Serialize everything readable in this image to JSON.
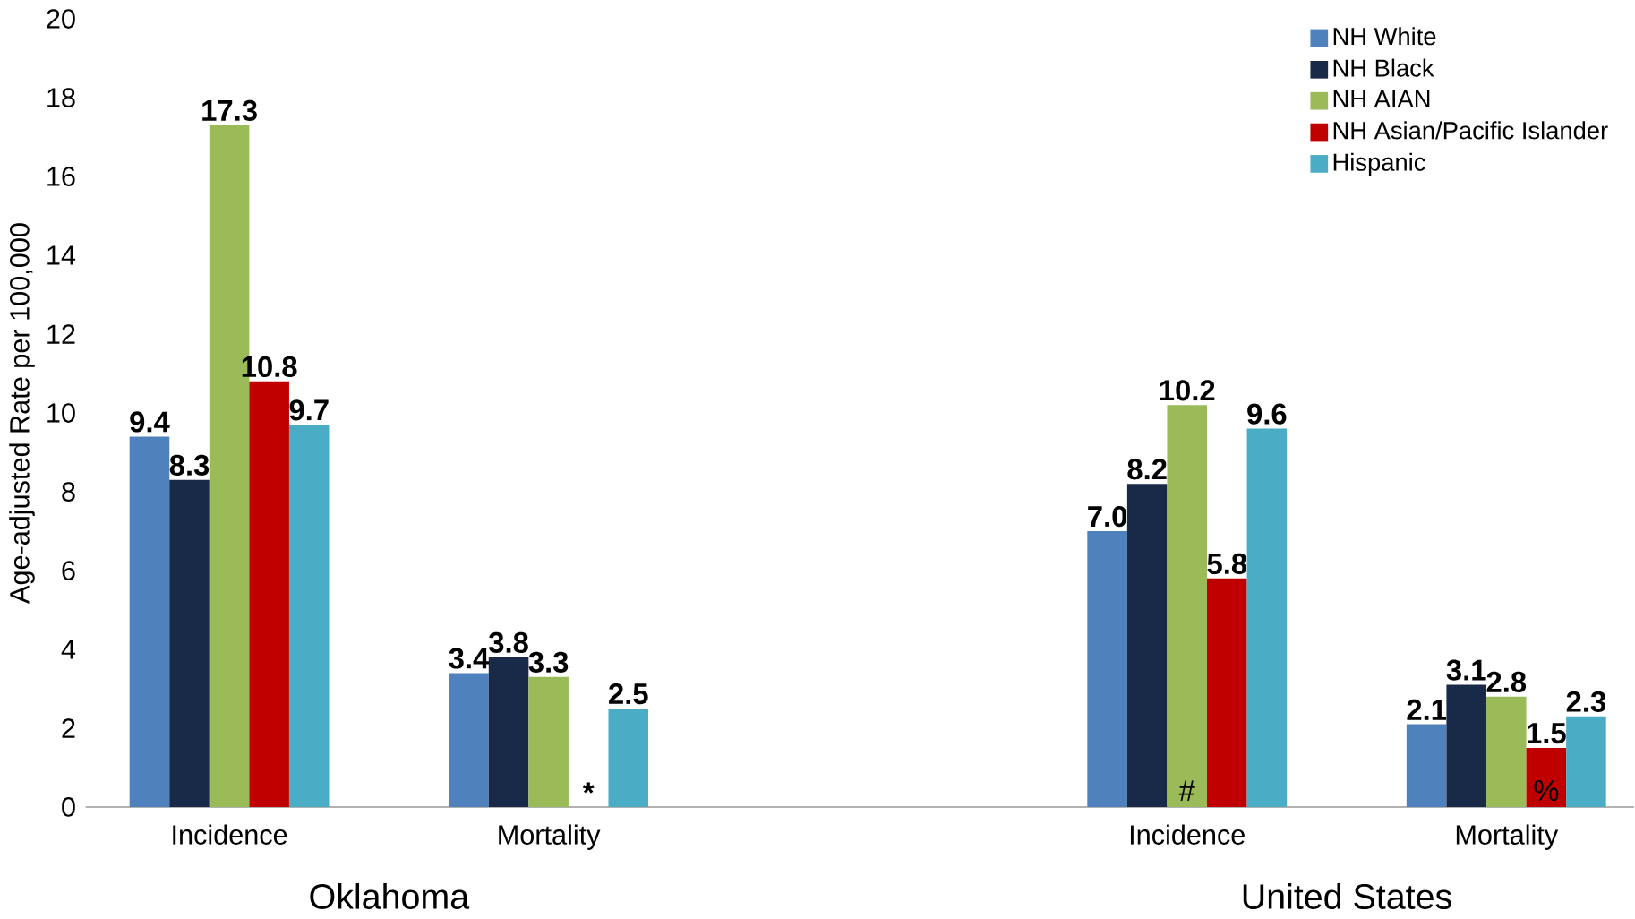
{
  "chart_data": {
    "type": "bar",
    "ylabel": "Age-adjusted Rate per 100,000",
    "categories": [
      "Incidence",
      "Mortality",
      null,
      "Incidence",
      "Mortality"
    ],
    "series": [
      {
        "name": "NH White",
        "color": "#4f81bd",
        "values": [
          9.4,
          3.4,
          null,
          7.0,
          2.1
        ],
        "value_labels": [
          "9.4",
          "3.4",
          null,
          "7.0",
          "2.1"
        ]
      },
      {
        "name": "NH Black",
        "color": "#182a48",
        "values": [
          8.3,
          3.8,
          null,
          8.2,
          3.1
        ],
        "value_labels": [
          "8.3",
          "3.8",
          null,
          "8.2",
          "3.1"
        ]
      },
      {
        "name": "NH AIAN",
        "color": "#9bbb59",
        "values": [
          17.3,
          3.3,
          null,
          10.2,
          2.8
        ],
        "value_labels": [
          "17.3",
          "3.3",
          null,
          "10.2",
          "2.8"
        ]
      },
      {
        "name": "NH Asian/Pacific Islander",
        "color": "#c00000",
        "values": [
          10.8,
          null,
          null,
          5.8,
          1.5
        ],
        "value_labels": [
          "10.8",
          "*",
          null,
          "5.8",
          "1.5"
        ]
      },
      {
        "name": "Hispanic",
        "color": "#4bacc6",
        "values": [
          9.7,
          2.5,
          null,
          9.6,
          2.3
        ],
        "value_labels": [
          "9.7",
          "2.5",
          null,
          "9.6",
          "2.3"
        ]
      }
    ],
    "annotations": [
      "Oklahoma",
      "United States",
      "#",
      "%"
    ],
    "ylim": [
      0,
      20
    ],
    "yticks": [
      0,
      2,
      4,
      6,
      8,
      10,
      12,
      14,
      16,
      18,
      20
    ],
    "grid": false,
    "legend": "top right"
  }
}
